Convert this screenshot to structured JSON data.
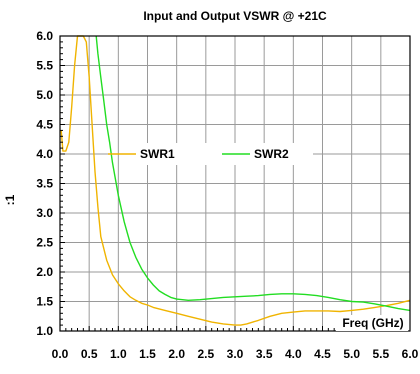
{
  "chart_data": {
    "type": "line",
    "title": "Input and Output VSWR @ +21C",
    "xlabel": "Freq (GHz)",
    "ylabel": ":1",
    "xlim": [
      0.0,
      6.0
    ],
    "ylim": [
      1.0,
      6.0
    ],
    "xticks": [
      "0.0",
      "0.5",
      "1.0",
      "1.5",
      "2.0",
      "2.5",
      "3.0",
      "3.5",
      "4.0",
      "4.5",
      "5.0",
      "5.5",
      "6.0"
    ],
    "yticks": [
      "1.0",
      "1.5",
      "2.0",
      "2.5",
      "3.0",
      "3.5",
      "4.0",
      "4.5",
      "5.0",
      "5.5",
      "6.0"
    ],
    "grid": true,
    "legend_position": "middle",
    "series": [
      {
        "name": "SWR1",
        "color": "#f0b400",
        "x": [
          0.02,
          0.05,
          0.1,
          0.15,
          0.2,
          0.25,
          0.3,
          0.35,
          0.4,
          0.45,
          0.5,
          0.55,
          0.6,
          0.65,
          0.7,
          0.8,
          0.9,
          1.0,
          1.1,
          1.2,
          1.3,
          1.4,
          1.5,
          1.6,
          1.8,
          2.0,
          2.2,
          2.4,
          2.6,
          2.8,
          3.0,
          3.1,
          3.2,
          3.4,
          3.6,
          3.8,
          4.0,
          4.2,
          4.4,
          4.6,
          4.8,
          5.0,
          5.2,
          5.4,
          5.6,
          5.8,
          6.0
        ],
        "y": [
          4.4,
          4.05,
          4.05,
          4.2,
          4.8,
          5.5,
          6.0,
          6.0,
          6.0,
          5.9,
          5.3,
          4.5,
          3.7,
          3.1,
          2.6,
          2.2,
          1.95,
          1.8,
          1.68,
          1.58,
          1.52,
          1.47,
          1.44,
          1.4,
          1.35,
          1.3,
          1.25,
          1.2,
          1.15,
          1.12,
          1.1,
          1.1,
          1.12,
          1.18,
          1.25,
          1.3,
          1.32,
          1.34,
          1.34,
          1.34,
          1.33,
          1.35,
          1.37,
          1.4,
          1.43,
          1.47,
          1.52
        ]
      },
      {
        "name": "SWR2",
        "color": "#22dd22",
        "x": [
          0.62,
          0.65,
          0.7,
          0.75,
          0.8,
          0.85,
          0.9,
          1.0,
          1.1,
          1.2,
          1.3,
          1.4,
          1.5,
          1.6,
          1.7,
          1.8,
          1.9,
          2.0,
          2.2,
          2.4,
          2.6,
          2.8,
          3.0,
          3.2,
          3.4,
          3.6,
          3.8,
          4.0,
          4.2,
          4.4,
          4.6,
          4.8,
          5.0,
          5.2,
          5.4,
          5.6,
          5.8,
          6.0
        ],
        "y": [
          6.0,
          5.7,
          5.3,
          4.9,
          4.5,
          4.2,
          3.85,
          3.3,
          2.85,
          2.5,
          2.25,
          2.05,
          1.9,
          1.78,
          1.68,
          1.62,
          1.57,
          1.54,
          1.52,
          1.53,
          1.55,
          1.57,
          1.58,
          1.59,
          1.6,
          1.62,
          1.63,
          1.63,
          1.62,
          1.6,
          1.57,
          1.53,
          1.5,
          1.49,
          1.46,
          1.42,
          1.38,
          1.35
        ]
      }
    ]
  }
}
